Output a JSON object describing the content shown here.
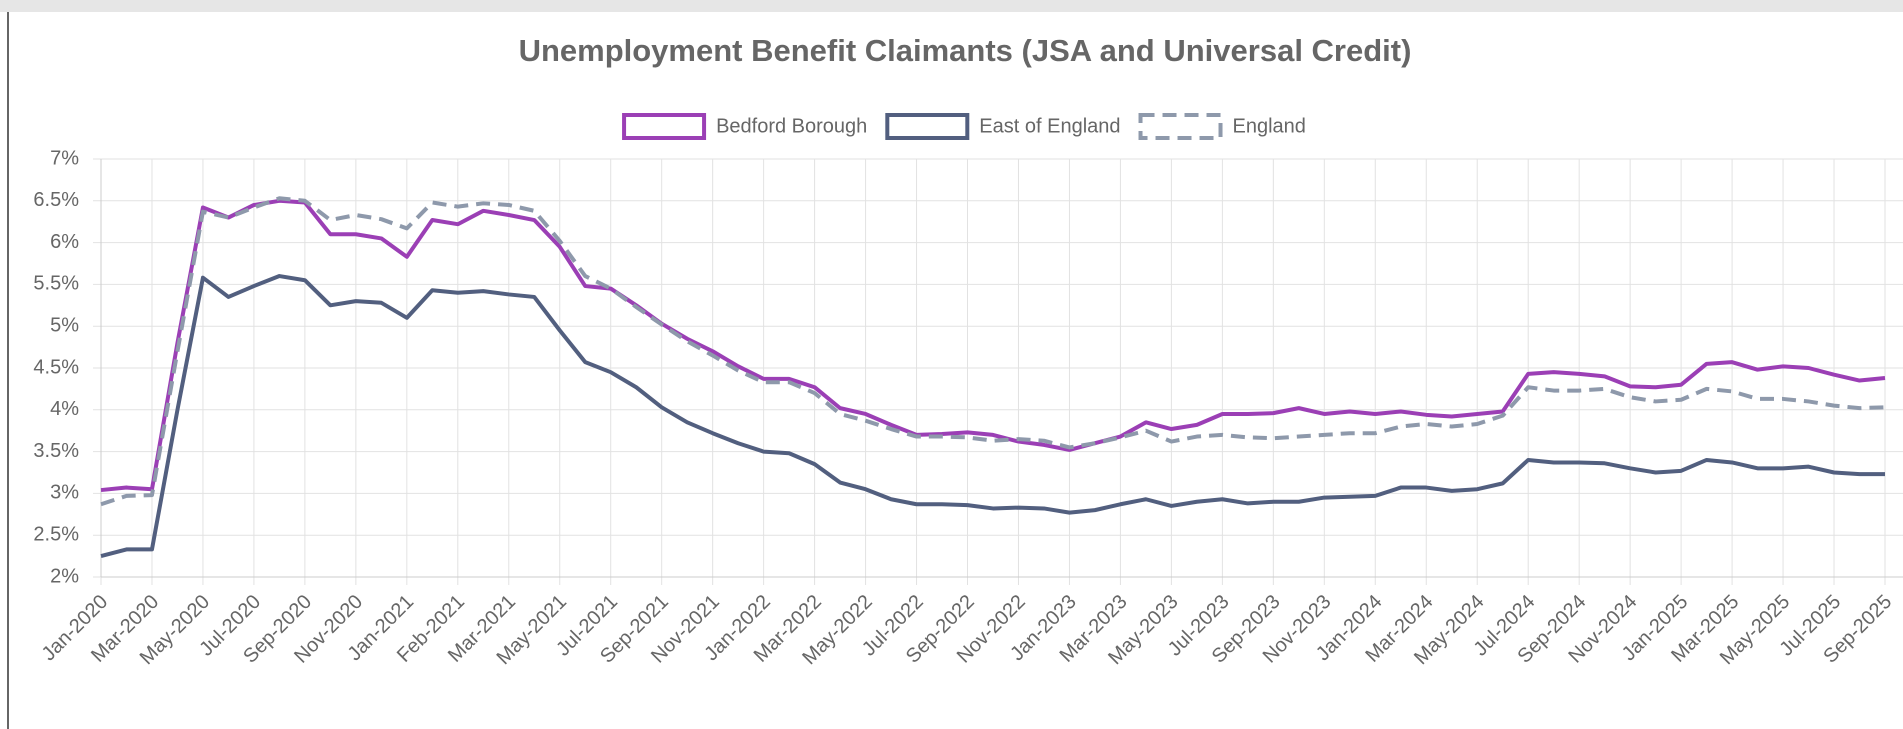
{
  "chart_data": {
    "type": "line",
    "title": "Unemployment Benefit Claimants (JSA and Universal Credit)",
    "categories": [
      "Jan-2020",
      null,
      "Mar-2020",
      null,
      "May-2020",
      null,
      "Jul-2020",
      null,
      "Sep-2020",
      null,
      "Nov-2020",
      null,
      "Jan-2021",
      null,
      "Feb-2021",
      null,
      "Mar-2021",
      null,
      "May-2021",
      null,
      "Jul-2021",
      null,
      "Sep-2021",
      null,
      "Nov-2021",
      null,
      "Jan-2022",
      null,
      "Mar-2022",
      null,
      "May-2022",
      null,
      "Jul-2022",
      null,
      "Sep-2022",
      null,
      "Nov-2022",
      null,
      "Jan-2023",
      null,
      "Mar-2023",
      null,
      "May-2023",
      null,
      "Jul-2023",
      null,
      "Sep-2023",
      null,
      "Nov-2023",
      null,
      "Jan-2024",
      null,
      "Mar-2024",
      null,
      "May-2024",
      null,
      "Jul-2024",
      null,
      "Sep-2024",
      null,
      "Nov-2024",
      null,
      "Jan-2025",
      null,
      "Mar-2025",
      null,
      "May-2025",
      null,
      "Jul-2025",
      null,
      "Sep-2025"
    ],
    "series": [
      {
        "name": "Bedford Borough",
        "color": "#9b3fb5",
        "dashed": false,
        "values": [
          3.04,
          3.07,
          3.05,
          4.8,
          6.42,
          6.3,
          6.45,
          6.5,
          6.48,
          6.1,
          6.1,
          6.05,
          5.83,
          6.27,
          6.22,
          6.38,
          6.33,
          6.27,
          5.95,
          5.48,
          5.45,
          5.25,
          5.03,
          4.85,
          4.7,
          4.52,
          4.37,
          4.37,
          4.27,
          4.02,
          3.95,
          3.82,
          3.7,
          3.71,
          3.73,
          3.7,
          3.62,
          3.58,
          3.52,
          3.6,
          3.68,
          3.85,
          3.77,
          3.82,
          3.95,
          3.95,
          3.96,
          4.02,
          3.95,
          3.98,
          3.95,
          3.98,
          3.94,
          3.92,
          3.95,
          3.98,
          4.43,
          4.45,
          4.43,
          4.4,
          4.28,
          4.27,
          4.3,
          4.55,
          4.57,
          4.48,
          4.52,
          4.5,
          4.42,
          4.35,
          4.38
        ]
      },
      {
        "name": "East of England",
        "color": "#525f7f",
        "dashed": false,
        "values": [
          2.25,
          2.33,
          2.33,
          4.0,
          5.58,
          5.35,
          5.48,
          5.6,
          5.55,
          5.25,
          5.3,
          5.28,
          5.1,
          5.43,
          5.4,
          5.42,
          5.38,
          5.35,
          4.95,
          4.57,
          4.45,
          4.27,
          4.03,
          3.85,
          3.72,
          3.6,
          3.5,
          3.48,
          3.35,
          3.13,
          3.05,
          2.93,
          2.87,
          2.87,
          2.86,
          2.82,
          2.83,
          2.82,
          2.77,
          2.8,
          2.87,
          2.93,
          2.85,
          2.9,
          2.93,
          2.88,
          2.9,
          2.9,
          2.95,
          2.96,
          2.97,
          3.07,
          3.07,
          3.03,
          3.05,
          3.12,
          3.4,
          3.37,
          3.37,
          3.36,
          3.3,
          3.25,
          3.27,
          3.4,
          3.37,
          3.3,
          3.3,
          3.32,
          3.25,
          3.23,
          3.23
        ]
      },
      {
        "name": "England",
        "color": "#8e99ab",
        "dashed": true,
        "values": [
          2.87,
          2.97,
          2.98,
          4.7,
          6.37,
          6.3,
          6.42,
          6.53,
          6.5,
          6.27,
          6.33,
          6.28,
          6.17,
          6.48,
          6.43,
          6.47,
          6.45,
          6.38,
          6.02,
          5.6,
          5.45,
          5.23,
          5.02,
          4.82,
          4.65,
          4.47,
          4.33,
          4.33,
          4.2,
          3.95,
          3.87,
          3.77,
          3.68,
          3.68,
          3.67,
          3.63,
          3.65,
          3.63,
          3.55,
          3.6,
          3.67,
          3.75,
          3.62,
          3.68,
          3.7,
          3.67,
          3.66,
          3.68,
          3.7,
          3.72,
          3.72,
          3.8,
          3.83,
          3.8,
          3.83,
          3.93,
          4.27,
          4.23,
          4.23,
          4.25,
          4.15,
          4.1,
          4.12,
          4.25,
          4.22,
          4.13,
          4.13,
          4.1,
          4.05,
          4.02,
          4.03
        ]
      }
    ],
    "ylim": [
      2,
      7
    ],
    "yticks": [
      {
        "value": 2,
        "label": "2%"
      },
      {
        "value": 2.5,
        "label": "2.5%"
      },
      {
        "value": 3,
        "label": "3%"
      },
      {
        "value": 3.5,
        "label": "3.5%"
      },
      {
        "value": 4,
        "label": "4%"
      },
      {
        "value": 4.5,
        "label": "4.5%"
      },
      {
        "value": 5,
        "label": "5%"
      },
      {
        "value": 5.5,
        "label": "5.5%"
      },
      {
        "value": 6,
        "label": "6%"
      },
      {
        "value": 6.5,
        "label": "6.5%"
      },
      {
        "value": 7,
        "label": "7%"
      }
    ],
    "grid": true,
    "legend": "top"
  }
}
